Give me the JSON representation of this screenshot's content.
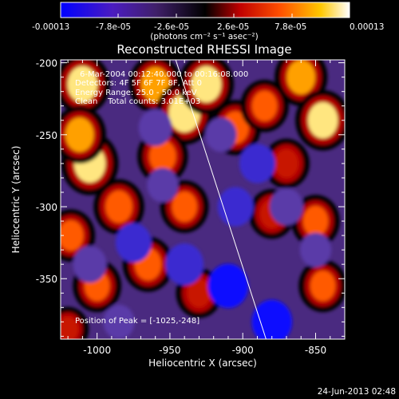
{
  "chart_data": {
    "type": "heatmap",
    "title": "Reconstructed RHESSI Image",
    "xlabel": "Heliocentric X (arcsec)",
    "ylabel": "Heliocentric Y (arcsec)",
    "xlim": [
      -1025,
      -830
    ],
    "ylim": [
      -392,
      -198
    ],
    "x_ticks": [
      "-1000",
      "-950",
      "-900",
      "-850"
    ],
    "x_tick_values": [
      -1000,
      -950,
      -900,
      -850
    ],
    "y_ticks": [
      "-200",
      "-250",
      "-300",
      "-350"
    ],
    "y_tick_values": [
      -200,
      -250,
      -300,
      -350
    ],
    "colorbar": {
      "labels": [
        "-0.00013",
        "-7.8e-05",
        "-2.6e-05",
        "2.6e-05",
        "7.8e-05",
        "0.00013"
      ],
      "values": [
        -0.00013,
        -7.8e-05,
        -2.6e-05,
        2.6e-05,
        7.8e-05,
        0.00013
      ],
      "units": "(photons cm⁻² s⁻¹ asec⁻²)",
      "colors": [
        "#0000ff",
        "#5a1aa8",
        "#4a2a8a",
        "#000000",
        "#c00000",
        "#ff5000",
        "#ffd000",
        "#ffffff"
      ]
    },
    "annotations": {
      "time_range": "6-Mar-2004 00:12:40.000 to 00:16:08.000",
      "detectors": "Detectors: 4F 5F 6F 7F 8F, Att 0",
      "energy_range": "Energy Range: 25.0 - 50.0 keV",
      "algorithm": "Clean    Total counts: 3.01E+03",
      "peak": "Position of Peak = [-1025,-248]"
    },
    "limb_line": {
      "x": [
        -946,
        -884
      ],
      "y": [
        -198,
        -392
      ]
    },
    "blobs": [
      {
        "x": -1010,
        "y": -215,
        "v": 0.9
      },
      {
        "x": -1005,
        "y": -270,
        "v": 1.0
      },
      {
        "x": -1012,
        "y": -250,
        "v": 0.8
      },
      {
        "x": -985,
        "y": -300,
        "v": 0.7
      },
      {
        "x": -1018,
        "y": -320,
        "v": 0.6
      },
      {
        "x": -960,
        "y": -215,
        "v": 0.8
      },
      {
        "x": -940,
        "y": -235,
        "v": 1.0
      },
      {
        "x": -925,
        "y": -215,
        "v": 0.9
      },
      {
        "x": -905,
        "y": -245,
        "v": 0.7
      },
      {
        "x": -885,
        "y": -230,
        "v": 0.6
      },
      {
        "x": -860,
        "y": -210,
        "v": 0.8
      },
      {
        "x": -845,
        "y": -240,
        "v": 0.9
      },
      {
        "x": -870,
        "y": -270,
        "v": 0.5
      },
      {
        "x": -955,
        "y": -265,
        "v": 0.7
      },
      {
        "x": -940,
        "y": -300,
        "v": 0.6
      },
      {
        "x": -965,
        "y": -340,
        "v": 0.7
      },
      {
        "x": -1000,
        "y": -355,
        "v": 0.6
      },
      {
        "x": -930,
        "y": -360,
        "v": 0.5
      },
      {
        "x": -880,
        "y": -305,
        "v": 0.5
      },
      {
        "x": -850,
        "y": -310,
        "v": 0.6
      },
      {
        "x": -845,
        "y": -355,
        "v": 0.6
      },
      {
        "x": -960,
        "y": -245,
        "v": -0.5
      },
      {
        "x": -915,
        "y": -250,
        "v": -0.4
      },
      {
        "x": -890,
        "y": -270,
        "v": -0.6
      },
      {
        "x": -870,
        "y": -300,
        "v": -0.5
      },
      {
        "x": -905,
        "y": -300,
        "v": -0.6
      },
      {
        "x": -975,
        "y": -325,
        "v": -0.6
      },
      {
        "x": -1005,
        "y": -340,
        "v": -0.5
      },
      {
        "x": -940,
        "y": -340,
        "v": -0.7
      },
      {
        "x": -910,
        "y": -355,
        "v": -0.8
      },
      {
        "x": -880,
        "y": -380,
        "v": -0.8
      },
      {
        "x": -985,
        "y": -380,
        "v": -0.4
      },
      {
        "x": -850,
        "y": -330,
        "v": -0.4
      },
      {
        "x": -955,
        "y": -285,
        "v": -0.4
      },
      {
        "x": -1020,
        "y": -385,
        "v": 0.3
      }
    ]
  },
  "timestamp": "24-Jun-2013 02:48"
}
